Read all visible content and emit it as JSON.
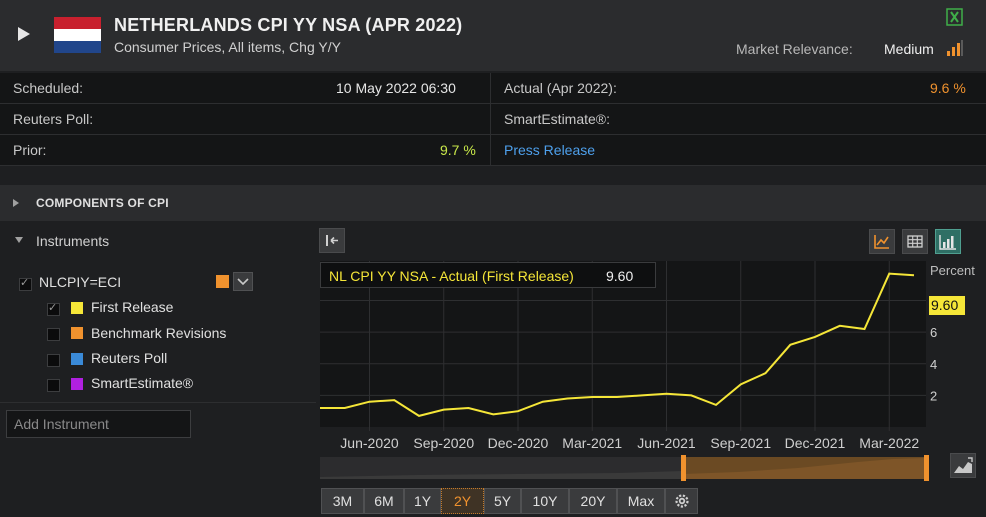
{
  "header": {
    "title": "NETHERLANDS CPI YY NSA (APR 2022)",
    "subtitle": "Consumer Prices, All items, Chg Y/Y",
    "market_relevance_label": "Market Relevance:",
    "market_relevance_value": "Medium"
  },
  "info": {
    "scheduled_label": "Scheduled:",
    "scheduled_value": "10 May 2022 06:30",
    "actual_label": "Actual (Apr 2022):",
    "actual_value": "9.6 %",
    "poll_label": "Reuters Poll:",
    "smart_label": "SmartEstimate®:",
    "prior_label": "Prior:",
    "prior_value": "9.7 %",
    "press_release": "Press Release"
  },
  "sections": {
    "components": "COMPONENTS OF CPI",
    "instruments": "Instruments"
  },
  "instruments": {
    "ric": "NLCPIY=ECI",
    "series": [
      {
        "label": "First Release",
        "color": "#f5e638",
        "checked": true
      },
      {
        "label": "Benchmark Revisions",
        "color": "#f0922e",
        "checked": false
      },
      {
        "label": "Reuters Poll",
        "color": "#3a8ad8",
        "checked": false
      },
      {
        "label": "SmartEstimate®",
        "color": "#b020e0",
        "checked": false
      }
    ],
    "add_placeholder": "Add Instrument"
  },
  "colors": {
    "accent_orange": "#f0922e",
    "prior_green": "#c9e84a",
    "link_blue": "#4ea0ec",
    "series_yellow": "#f5e638"
  },
  "chart_data": {
    "type": "line",
    "ylabel": "Percent",
    "tooltip_label": "NL CPI YY NSA - Actual (First Release)",
    "tooltip_value": "9.60",
    "last_value": "9.60",
    "ylim": [
      0,
      10.5
    ],
    "y_ticks": [
      2,
      4,
      6,
      8
    ],
    "x_tick_labels": [
      "Jun-2020",
      "Sep-2020",
      "Dec-2020",
      "Mar-2021",
      "Jun-2021",
      "Sep-2021",
      "Dec-2021",
      "Mar-2022"
    ],
    "series": [
      {
        "name": "First Release",
        "x": [
          "2020-04",
          "2020-05",
          "2020-06",
          "2020-07",
          "2020-08",
          "2020-09",
          "2020-10",
          "2020-11",
          "2020-12",
          "2021-01",
          "2021-02",
          "2021-03",
          "2021-04",
          "2021-05",
          "2021-06",
          "2021-07",
          "2021-08",
          "2021-09",
          "2021-10",
          "2021-11",
          "2021-12",
          "2022-01",
          "2022-02",
          "2022-03",
          "2022-04"
        ],
        "values": [
          1.2,
          1.2,
          1.6,
          1.7,
          0.7,
          1.1,
          1.2,
          0.8,
          1.0,
          1.6,
          1.8,
          1.9,
          1.9,
          2.0,
          2.1,
          2.0,
          1.4,
          2.7,
          3.4,
          5.2,
          5.7,
          6.4,
          6.2,
          9.7,
          9.6
        ]
      }
    ],
    "grid": true
  },
  "zoom": {
    "buttons": [
      "3M",
      "6M",
      "1Y",
      "2Y",
      "5Y",
      "10Y",
      "20Y",
      "Max"
    ],
    "active": "2Y"
  }
}
